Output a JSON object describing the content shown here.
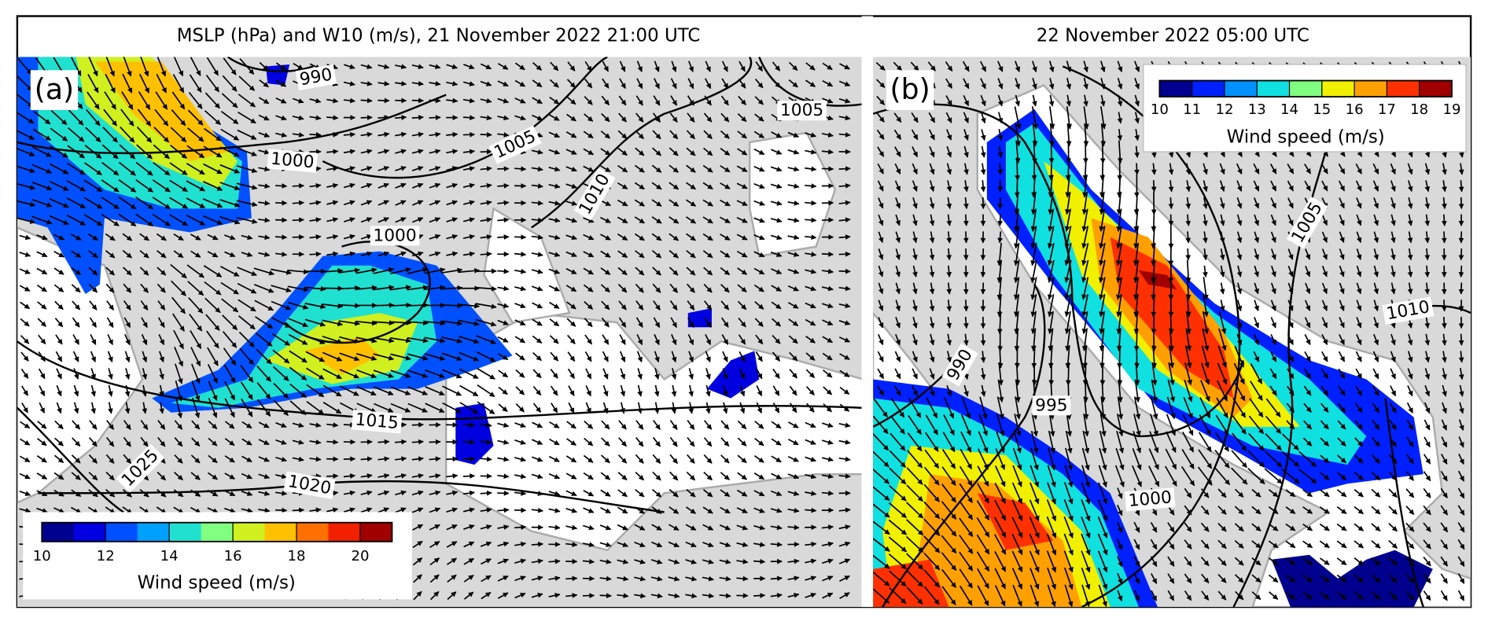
{
  "panels": [
    {
      "title": "MSLP (hPa) and W10 (m/s), 21 November 2022 21:00 UTC",
      "label": "(a)",
      "contours": [
        990,
        1000,
        1005,
        1010,
        1000,
        1005,
        1015,
        1020,
        1025
      ],
      "colorbar": {
        "title": "Wind speed (m/s)",
        "lim": [
          10,
          21
        ],
        "ticks": [
          10,
          12,
          14,
          16,
          18,
          20
        ],
        "colors": [
          "#00008f",
          "#0000e0",
          "#0050ff",
          "#00a0ff",
          "#20e0d0",
          "#80ff80",
          "#d0f020",
          "#ffc000",
          "#ff7000",
          "#f02000",
          "#a00000"
        ]
      }
    },
    {
      "title": "22 November 2022 05:00 UTC",
      "label": "(b)",
      "contours": [
        990,
        995,
        1000,
        1005,
        1010
      ],
      "colorbar": {
        "title": "Wind speed (m/s)",
        "lim": [
          10,
          19
        ],
        "ticks": [
          10,
          11,
          12,
          13,
          14,
          15,
          16,
          17,
          18,
          19
        ],
        "colors": [
          "#00008f",
          "#0020ff",
          "#0090ff",
          "#10e0e0",
          "#80ff80",
          "#f0f000",
          "#ffa000",
          "#ff3000",
          "#a00000"
        ]
      }
    }
  ]
}
